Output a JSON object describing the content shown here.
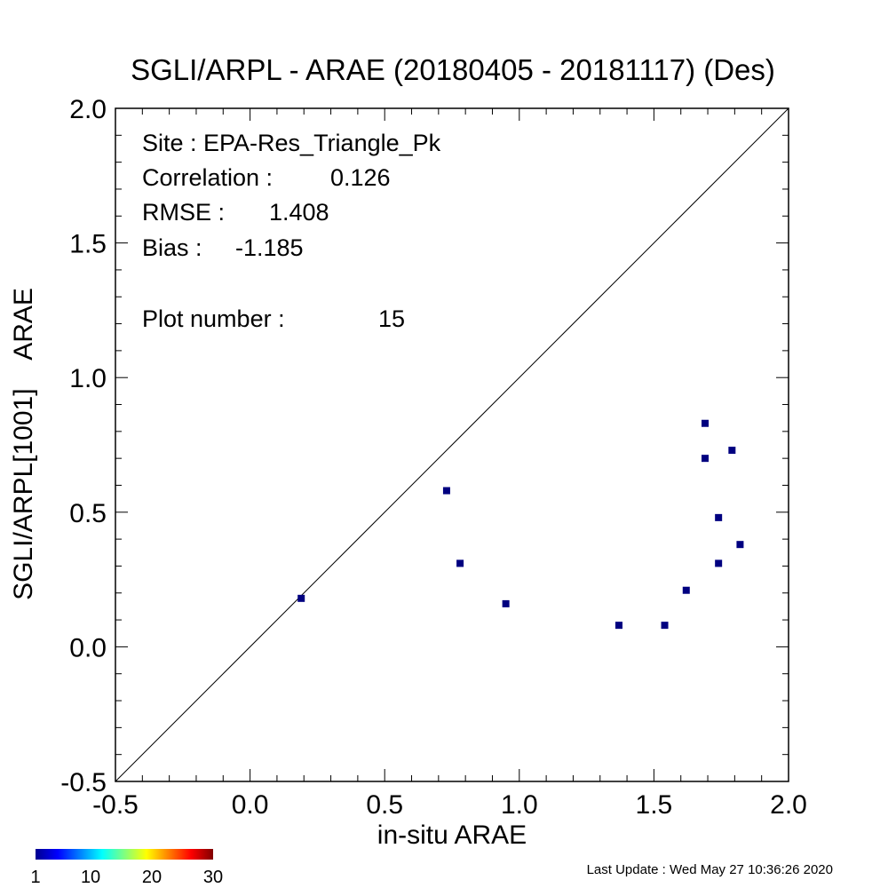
{
  "chart_data": {
    "type": "scatter",
    "title": "SGLI/ARPL - ARAE (20180405 - 20181117) (Des)",
    "xlabel": "in-situ ARAE",
    "ylabel": "SGLI/ARPL[1001]    ARAE",
    "xlim": [
      -0.5,
      2.0
    ],
    "ylim": [
      -0.5,
      2.0
    ],
    "x_ticks": [
      "-0.5",
      "0.0",
      "0.5",
      "1.0",
      "1.5",
      "2.0"
    ],
    "y_ticks": [
      "-0.5",
      "0.0",
      "0.5",
      "1.0",
      "1.5",
      "2.0"
    ],
    "one_to_one_line": true,
    "grid": false,
    "point_color": "#000080",
    "points": [
      {
        "x": 0.19,
        "y": 0.18
      },
      {
        "x": 0.73,
        "y": 0.58
      },
      {
        "x": 0.78,
        "y": 0.31
      },
      {
        "x": 0.95,
        "y": 0.16
      },
      {
        "x": 1.37,
        "y": 0.08
      },
      {
        "x": 1.54,
        "y": 0.08
      },
      {
        "x": 1.62,
        "y": 0.21
      },
      {
        "x": 1.69,
        "y": 0.83
      },
      {
        "x": 1.69,
        "y": 0.7
      },
      {
        "x": 1.74,
        "y": 0.48
      },
      {
        "x": 1.74,
        "y": 0.31
      },
      {
        "x": 1.79,
        "y": 0.73
      },
      {
        "x": 1.82,
        "y": 0.38
      }
    ],
    "annotations": {
      "site": "Site : EPA-Res_Triangle_Pk",
      "correlation_label": "Correlation :",
      "correlation": "0.126",
      "rmse_label": "RMSE :",
      "rmse": "1.408",
      "bias_label": "Bias :",
      "bias": "-1.185",
      "plot_number_label": "Plot number :",
      "plot_number": "15"
    },
    "colorbar": {
      "ticks": [
        "1",
        "10",
        "20",
        "30"
      ],
      "colormap": "jet"
    }
  },
  "footer": {
    "last_update": "Last Update : Wed May 27 10:36:26 2020"
  }
}
